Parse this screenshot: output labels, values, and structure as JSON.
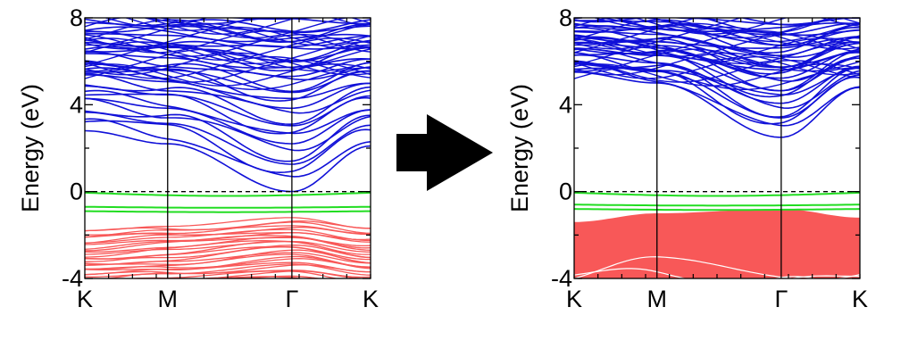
{
  "colors": {
    "conduction": "#1010d8",
    "valence": "#f85858",
    "defect": "#22dd22",
    "fermi": "#000000",
    "arrow": "#000000"
  },
  "arrow": {
    "icon": "right-arrow-icon"
  },
  "chart_data": [
    {
      "type": "line",
      "title": "",
      "xlabel": "",
      "ylabel": "Energy (eV)",
      "ylim": [
        -4,
        8
      ],
      "yticks": [
        {
          "value": 8,
          "label": "8"
        },
        {
          "value": 4,
          "label": "4"
        },
        {
          "value": 0,
          "label": "0"
        },
        {
          "value": -4,
          "label": "-4"
        }
      ],
      "kpoints": [
        "K",
        "M",
        "Γ",
        "K"
      ],
      "kpoint_positions": [
        0,
        1,
        2.5,
        3.45
      ],
      "fermi_level": 0,
      "conduction_band_minimum": {
        "k": "Γ",
        "energy": 0.0
      },
      "band_groups": [
        {
          "kind": "conduction",
          "color": "blue",
          "min_at_K": 2.8,
          "min_at_M": 2.2,
          "min_at_Gamma": 0.0,
          "min_at_K2": 2.1,
          "range": [
            0.0,
            8
          ]
        },
        {
          "kind": "defect",
          "color": "green",
          "levels": [
            -0.05,
            -0.7,
            -0.9
          ]
        },
        {
          "kind": "valence",
          "color": "red",
          "top_at_K": -1.8,
          "top_at_M": -1.6,
          "top_at_Gamma": -1.2,
          "top_at_K2": -1.7,
          "range": [
            -4,
            -1.2
          ]
        }
      ]
    },
    {
      "type": "line",
      "title": "",
      "xlabel": "",
      "ylabel": "Energy (eV)",
      "ylim": [
        -4,
        8
      ],
      "yticks": [
        {
          "value": 8,
          "label": "8"
        },
        {
          "value": 4,
          "label": "4"
        },
        {
          "value": 0,
          "label": "0"
        },
        {
          "value": -4,
          "label": "-4"
        }
      ],
      "kpoints": [
        "K",
        "M",
        "Γ",
        "K"
      ],
      "kpoint_positions": [
        0,
        1,
        2.5,
        3.45
      ],
      "fermi_level": 0,
      "conduction_band_minimum": {
        "k": "Γ",
        "energy": 2.5
      },
      "band_groups": [
        {
          "kind": "conduction",
          "color": "blue",
          "min_at_K": 5.5,
          "min_at_M": 5.0,
          "min_at_Gamma": 2.5,
          "min_at_K2": 4.8,
          "range": [
            2.5,
            8
          ]
        },
        {
          "kind": "defect",
          "color": "green",
          "levels": [
            -0.05,
            -0.6,
            -0.8
          ]
        },
        {
          "kind": "valence",
          "color": "red",
          "top_at_K": -1.4,
          "top_at_M": -1.0,
          "top_at_Gamma": -0.8,
          "top_at_K2": -1.2,
          "range": [
            -4,
            -0.8
          ]
        }
      ]
    }
  ]
}
